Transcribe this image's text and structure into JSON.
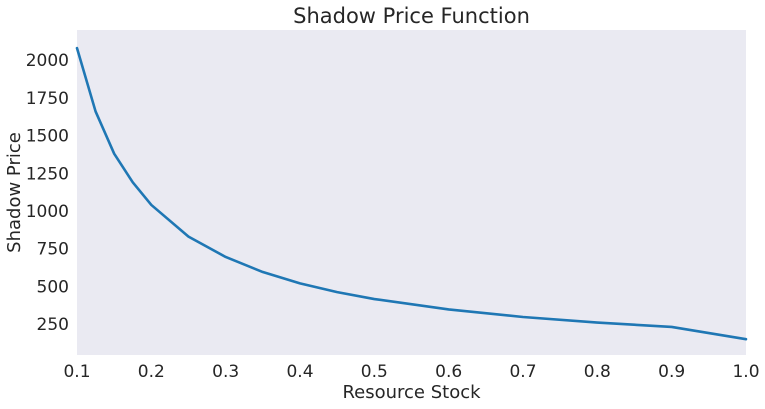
{
  "chart_data": {
    "type": "line",
    "title": "Shadow Price Function",
    "xlabel": "Resource Stock",
    "ylabel": "Shadow Price",
    "xlim": [
      0.1,
      1.0
    ],
    "ylim": [
      45,
      2200
    ],
    "xticks": [
      "0.1",
      "0.2",
      "0.3",
      "0.4",
      "0.5",
      "0.6",
      "0.7",
      "0.8",
      "0.9",
      "1.0"
    ],
    "yticks": [
      "250",
      "500",
      "750",
      "1000",
      "1250",
      "1500",
      "1750",
      "2000"
    ],
    "grid": false,
    "background_color": "#eaeaf2",
    "series": [
      {
        "color": "#1f77b4",
        "x": [
          0.1,
          0.125,
          0.15,
          0.175,
          0.2,
          0.25,
          0.3,
          0.35,
          0.4,
          0.45,
          0.5,
          0.6,
          0.7,
          0.8,
          0.9,
          1.0
        ],
        "y": [
          2080,
          1660,
          1380,
          1190,
          1040,
          830,
          695,
          595,
          520,
          462,
          416,
          347,
          297,
          260,
          231,
          150
        ]
      }
    ]
  }
}
